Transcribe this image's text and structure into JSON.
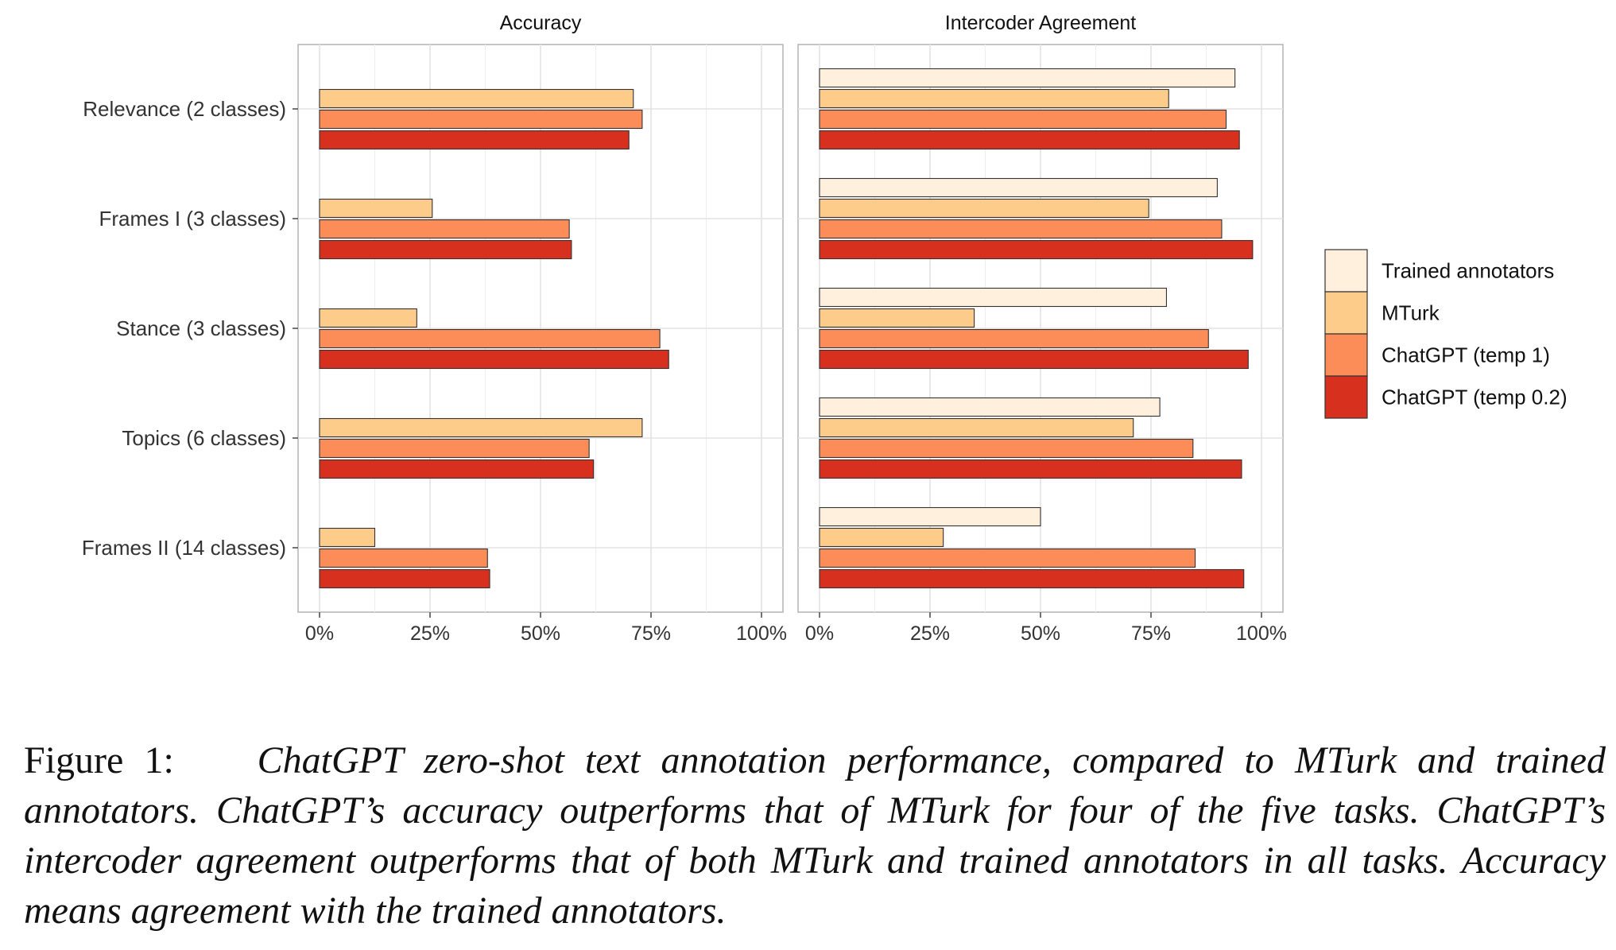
{
  "chart_data": {
    "type": "bar",
    "orientation": "horizontal",
    "categories": [
      "Relevance (2 classes)",
      "Frames I (3 classes)",
      "Stance (3 classes)",
      "Topics (6 classes)",
      "Frames II (14 classes)"
    ],
    "xlim": [
      0,
      1
    ],
    "x_ticks": [
      "0%",
      "25%",
      "50%",
      "75%",
      "100%"
    ],
    "grid": true,
    "legend_position": "right",
    "legend": [
      {
        "name": "Trained annotators",
        "color": "#FEF0DD"
      },
      {
        "name": "MTurk",
        "color": "#FDCB8A"
      },
      {
        "name": "ChatGPT (temp 1)",
        "color": "#FC8D59"
      },
      {
        "name": "ChatGPT (temp 0.2)",
        "color": "#D7301F"
      }
    ],
    "panels": [
      {
        "title": "Accuracy",
        "series": [
          {
            "name": "MTurk",
            "values": [
              0.71,
              0.255,
              0.22,
              0.73,
              0.125
            ]
          },
          {
            "name": "ChatGPT (temp 1)",
            "values": [
              0.73,
              0.565,
              0.77,
              0.61,
              0.38
            ]
          },
          {
            "name": "ChatGPT (temp 0.2)",
            "values": [
              0.7,
              0.57,
              0.79,
              0.62,
              0.385
            ]
          }
        ]
      },
      {
        "title": "Intercoder Agreement",
        "series": [
          {
            "name": "Trained annotators",
            "values": [
              0.94,
              0.9,
              0.785,
              0.77,
              0.5
            ]
          },
          {
            "name": "MTurk",
            "values": [
              0.79,
              0.745,
              0.35,
              0.71,
              0.28
            ]
          },
          {
            "name": "ChatGPT (temp 1)",
            "values": [
              0.92,
              0.91,
              0.88,
              0.845,
              0.85
            ]
          },
          {
            "name": "ChatGPT (temp 0.2)",
            "values": [
              0.95,
              0.98,
              0.97,
              0.955,
              0.96
            ]
          }
        ]
      }
    ]
  },
  "caption": {
    "lead": "Figure 1:",
    "body": "ChatGPT zero-shot text annotation performance, compared to MTurk and trained annotators. ChatGPT’s accuracy outperforms that of MTurk for four of the five tasks. ChatGPT’s intercoder agreement outperforms that of both MTurk and trained annotators in all tasks. Accuracy means agreement with the trained annotators."
  }
}
